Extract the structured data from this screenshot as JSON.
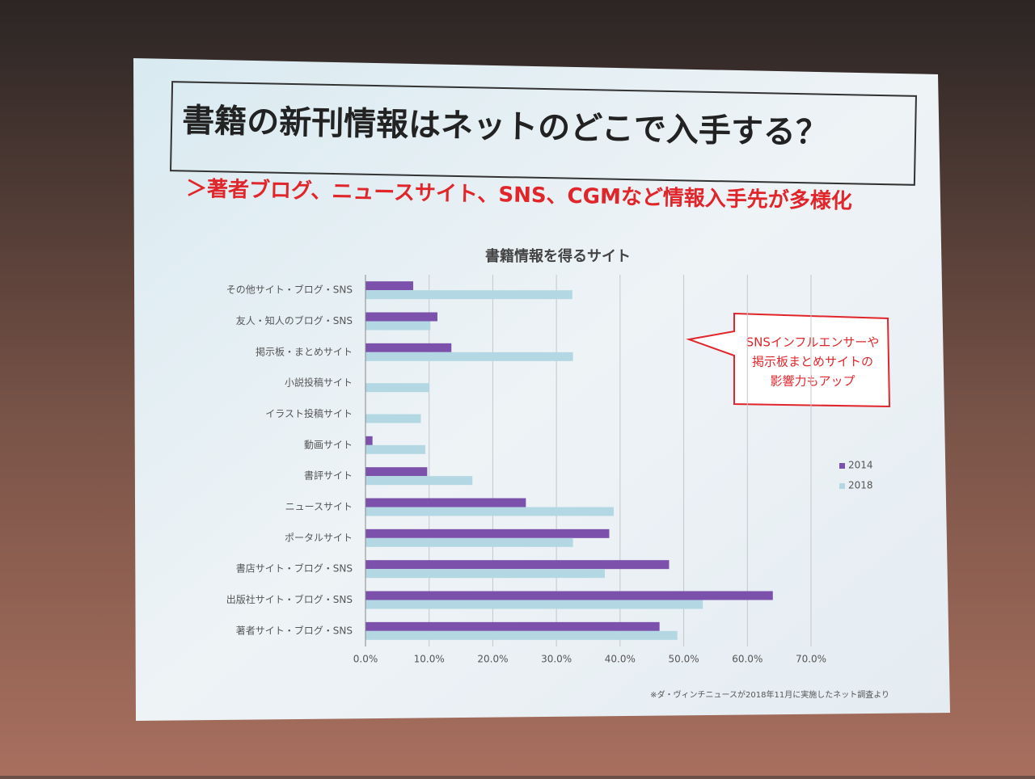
{
  "slide": {
    "title": "書籍の新刊情報はネットのどこで入手する？",
    "subtitle": "＞著者ブログ、ニュースサイト、SNS、CGMなど情報入手先が多様化",
    "callout": [
      "SNSインフルエンサーや",
      "掲示板まとめサイトの",
      "影響力もアップ"
    ],
    "footnote": "※ダ・ヴィンチニュースが2018年11月に実施したネット調査より"
  },
  "chart_data": {
    "type": "hbar",
    "title": "書籍情報を得るサイト",
    "categories": [
      "その他サイト・ブログ・SNS",
      "友人・知人のブログ・SNS",
      "掲示板・まとめサイト",
      "小説投稿サイト",
      "イラスト投稿サイト",
      "動画サイト",
      "書評サイト",
      "ニュースサイト",
      "ポータルサイト",
      "書店サイト・ブログ・SNS",
      "出版社サイト・ブログ・SNS",
      "著者サイト・ブログ・SNS"
    ],
    "series": [
      {
        "name": "2014",
        "color": "#7b51ab",
        "values": [
          7.5,
          11.3,
          13.5,
          null,
          null,
          1.1,
          9.7,
          25.2,
          38.3,
          47.7,
          64.0,
          46.2
        ]
      },
      {
        "name": "2018",
        "color": "#b4d8e3",
        "values": [
          32.5,
          10.2,
          32.6,
          10.0,
          8.7,
          9.4,
          16.8,
          39.0,
          32.6,
          37.6,
          53.0,
          49.0
        ]
      }
    ],
    "xlim": [
      0,
      70
    ],
    "xticks": [
      {
        "value": 0,
        "label": "0.0%"
      },
      {
        "value": 10,
        "label": "10.0%"
      },
      {
        "value": 20,
        "label": "20.0%"
      },
      {
        "value": 30,
        "label": "30.0%"
      },
      {
        "value": 40,
        "label": "40.0%"
      },
      {
        "value": 50,
        "label": "50.0%"
      },
      {
        "value": 60,
        "label": "60.0%"
      },
      {
        "value": 70,
        "label": "70.0%"
      }
    ],
    "grid": true,
    "legend": "right"
  }
}
